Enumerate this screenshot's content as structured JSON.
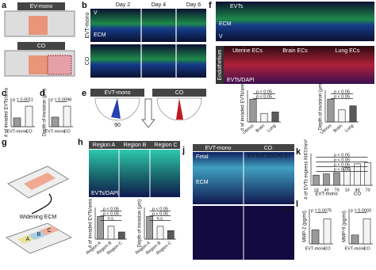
{
  "panels": {
    "a": {
      "label": "a",
      "tags": [
        "EV-mono",
        "CO"
      ]
    },
    "b": {
      "label": "b",
      "columns": [
        "Day 2",
        "Day 4",
        "Day 6"
      ],
      "rows": [
        "EVT-mono",
        "CO"
      ],
      "sides": [
        "V",
        "ECM"
      ]
    },
    "c": {
      "label": "c"
    },
    "d": {
      "label": "d"
    },
    "e": {
      "label": "e",
      "titles": [
        "EVT-mono",
        "CO"
      ],
      "angle": "90"
    },
    "f": {
      "label": "f",
      "top": [
        "EVTs",
        "ECM",
        "V"
      ],
      "bottom": "Endothelium",
      "sources": [
        "Uterine ECs",
        "Brain ECs",
        "Lung ECs"
      ],
      "stain": "EVTs/DAPI"
    },
    "g": {
      "label": "g",
      "caption": "Widening ECM",
      "regions": [
        "A",
        "B",
        "C"
      ]
    },
    "h": {
      "label": "h",
      "regions": [
        "Region A",
        "Region B",
        "Region C"
      ],
      "stain": "EVTs/DAPI"
    },
    "j": {
      "label": "j",
      "titles": [
        "EVT-mono",
        "CO"
      ],
      "sides": [
        "Fetal",
        "ECM"
      ],
      "stain": "EVTs/CD31/Ki-67",
      "stain2": "Ki-67"
    },
    "k": {
      "label": "k"
    },
    "l": {
      "label": "l"
    }
  },
  "charts": {
    "c": {
      "y_label": "# of invaded EVTs/area",
      "categories": [
        "EVT-mono",
        "CO"
      ],
      "values": [
        0.3,
        0.7
      ],
      "annotations": [
        "p = 0.0011"
      ]
    },
    "d": {
      "y_label": "Depth of invasion (μm)",
      "categories": [
        "EVT-mono",
        "CO"
      ],
      "values": [
        0.35,
        0.75
      ],
      "annotations": [
        "p = 0.0098"
      ]
    },
    "f1": {
      "y_label": "# of invaded EVTs/area",
      "categories": [
        "Uterus",
        "Brain",
        "Lung"
      ],
      "values": [
        0.8,
        0.3,
        0.35
      ],
      "annotations": [
        "p < 0.05",
        "p < 0.05"
      ]
    },
    "f2": {
      "y_label": "Depth of invasion (μm)",
      "categories": [
        "Uterus",
        "Brain",
        "Lung"
      ],
      "values": [
        0.85,
        0.45,
        0.6
      ],
      "annotations": [
        "p < 0.05",
        "p < 0.05"
      ]
    },
    "h1": {
      "y_label": "# of invaded EVTs/area",
      "categories": [
        "Region A",
        "Region B",
        "Region C"
      ],
      "values": [
        0.8,
        0.45,
        0.25
      ],
      "annotations": [
        "p < 0.05",
        "p < 0.05",
        "n.s."
      ]
    },
    "h2": {
      "y_label": "Depth of invasion (μm)",
      "categories": [
        "Region A",
        "Region B",
        "Region C"
      ],
      "values": [
        0.8,
        0.45,
        0.3
      ],
      "annotations": [
        "p < 0.05",
        "p < 0.05",
        "n.s."
      ]
    },
    "k": {
      "y_label": "# of EVTs express Ki67/mm²",
      "categories": [
        "1d",
        "4d",
        "7d",
        "1d",
        "4d",
        "7d"
      ],
      "groups": [
        "EVT-mono",
        "CO"
      ],
      "values": [
        0.4,
        0.45,
        0.5,
        0.7,
        0.85,
        0.9
      ],
      "annotations": [
        "p < 0.05",
        "p < 0.05",
        "p < 0.05",
        "p < 0.05"
      ]
    },
    "l1": {
      "y_label": "MMP-2 (pg/ml)",
      "categories": [
        "EVT-mono",
        "CO"
      ],
      "values": [
        0.45,
        0.8
      ],
      "annotations": [
        "p = 0.0075"
      ]
    },
    "l2": {
      "y_label": "MMP-9 (pg/ml)",
      "categories": [
        "EVT-mono",
        "CO"
      ],
      "values": [
        0.3,
        0.85
      ],
      "annotations": [
        "p = 0.0003"
      ]
    }
  }
}
